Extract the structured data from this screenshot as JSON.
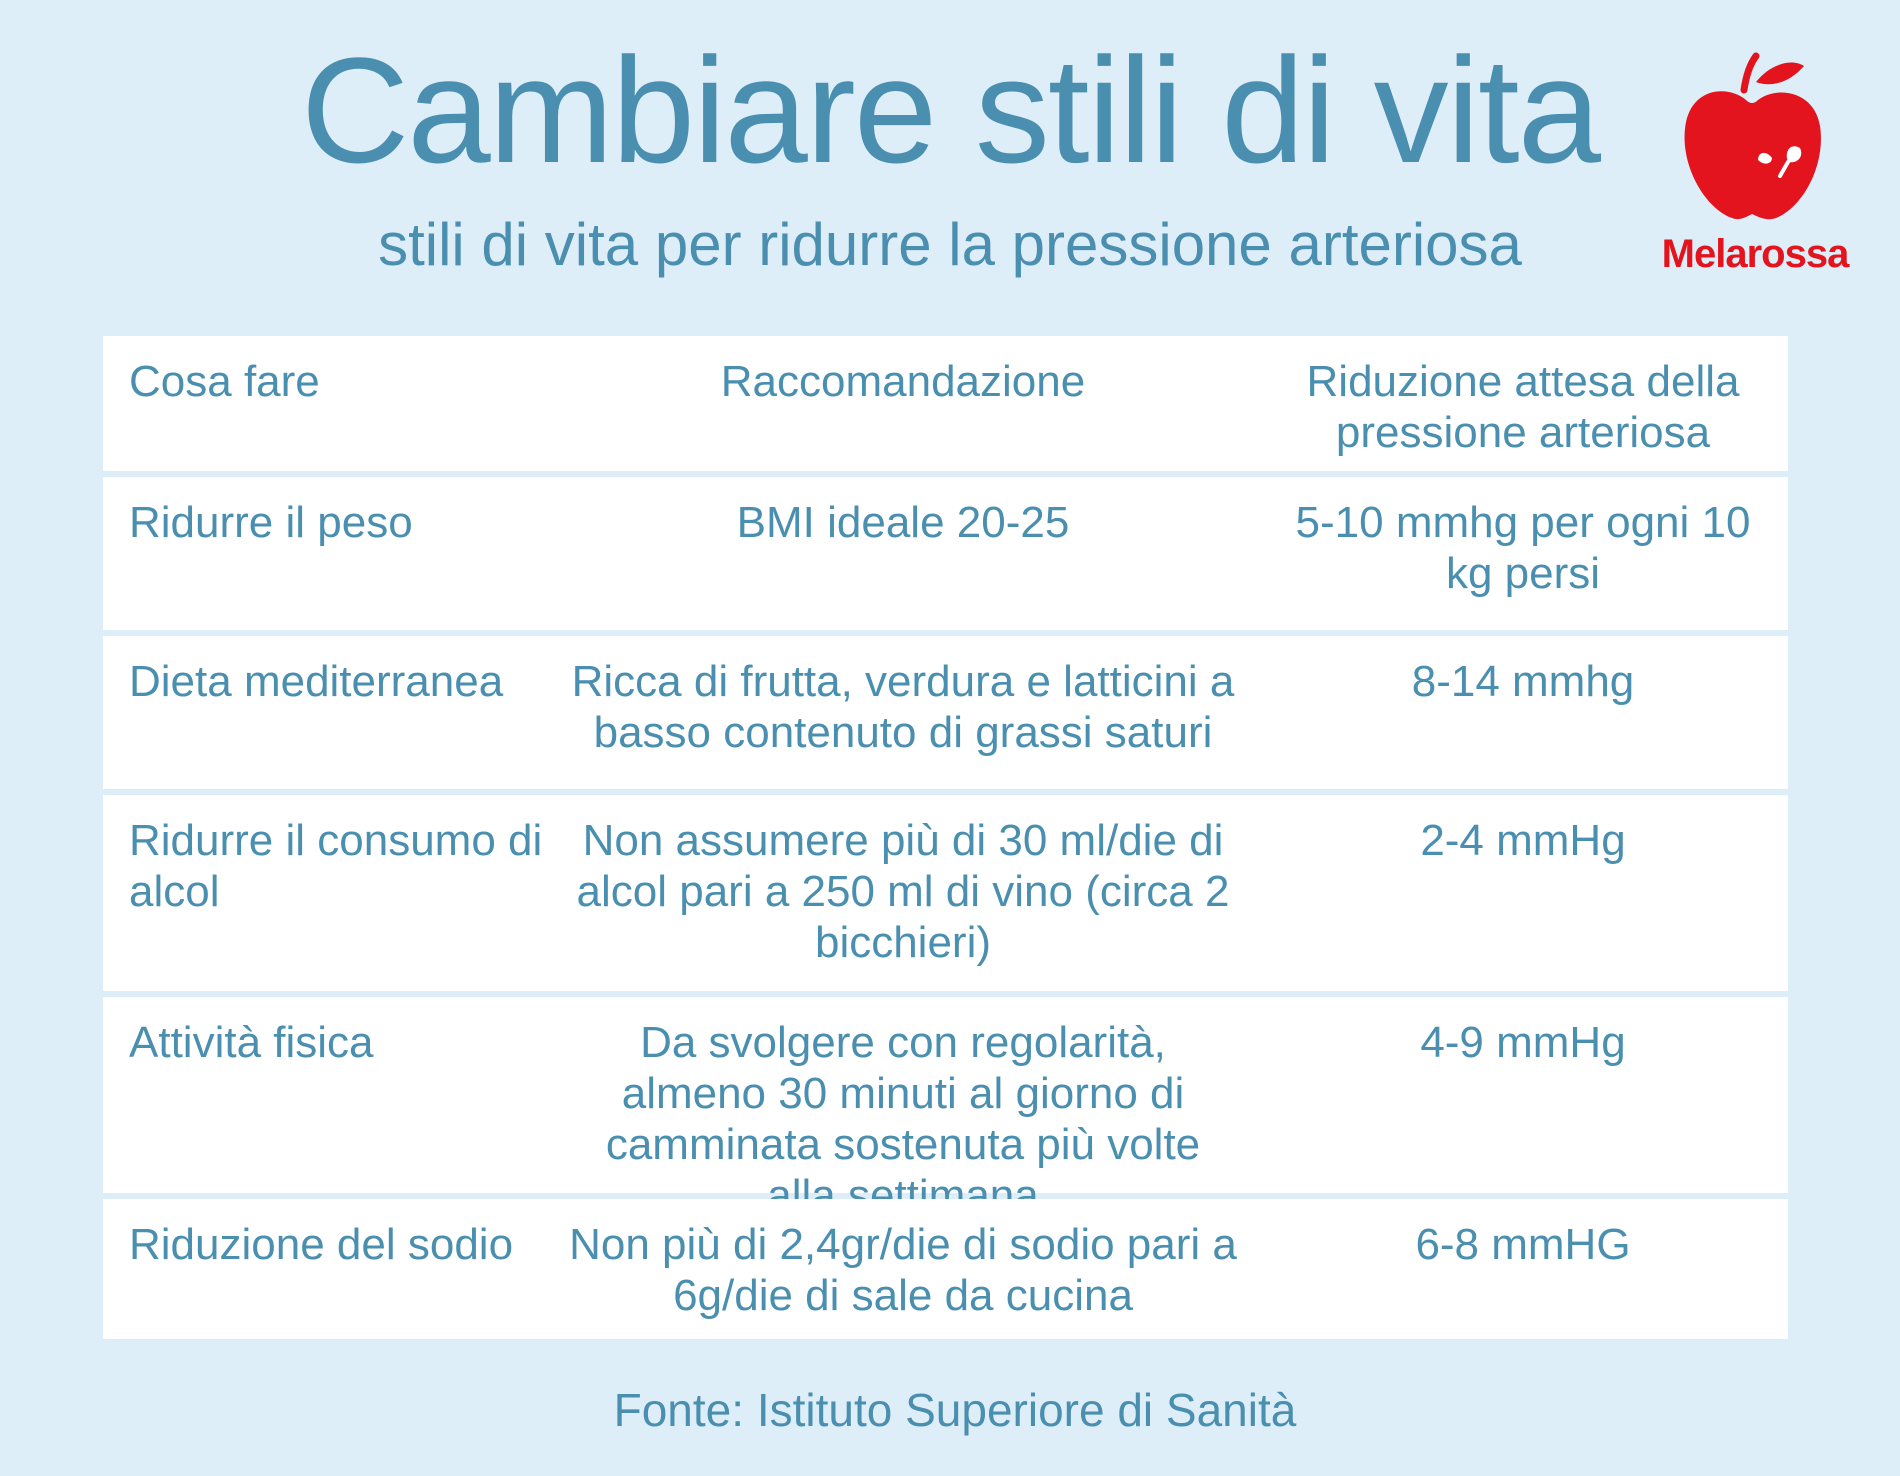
{
  "header": {
    "title": "Cambiare stili di vita",
    "subtitle": "stili di vita per ridurre la pressione arteriosa"
  },
  "logo": {
    "icon": "apple-icon",
    "text": "Melarossa",
    "color": "#e3141d"
  },
  "table": {
    "headers": [
      "Cosa fare",
      "Raccomandazione",
      "Riduzione attesa della pressione arteriosa"
    ],
    "rows": [
      [
        "Ridurre il peso",
        "BMI ideale 20-25",
        "5-10 mmhg per ogni 10 kg persi"
      ],
      [
        "Dieta mediterranea",
        "Ricca di frutta, verdura e latticini a basso contenuto di grassi saturi",
        "8-14 mmhg"
      ],
      [
        "Ridurre il consumo di alcol",
        "Non assumere più di 30 ml/die di alcol pari a 250 ml di vino (circa 2 bicchieri)",
        "2-4 mmHg"
      ],
      [
        "Attività fisica",
        "Da svolgere con regolarità, almeno 30 minuti al giorno di camminata sostenuta più volte alla settimana",
        "4-9 mmHg"
      ],
      [
        "Riduzione del sodio",
        "Non più di 2,4gr/die di sodio pari a 6g/die di sale da cucina",
        "6-8 mmHG"
      ]
    ]
  },
  "footer": {
    "source": "Fonte: Istituto Superiore di Sanità"
  },
  "colors": {
    "background": "#ddeef8",
    "text": "#4a8faf",
    "table_background": "#ffffff",
    "brand": "#e3141d"
  }
}
